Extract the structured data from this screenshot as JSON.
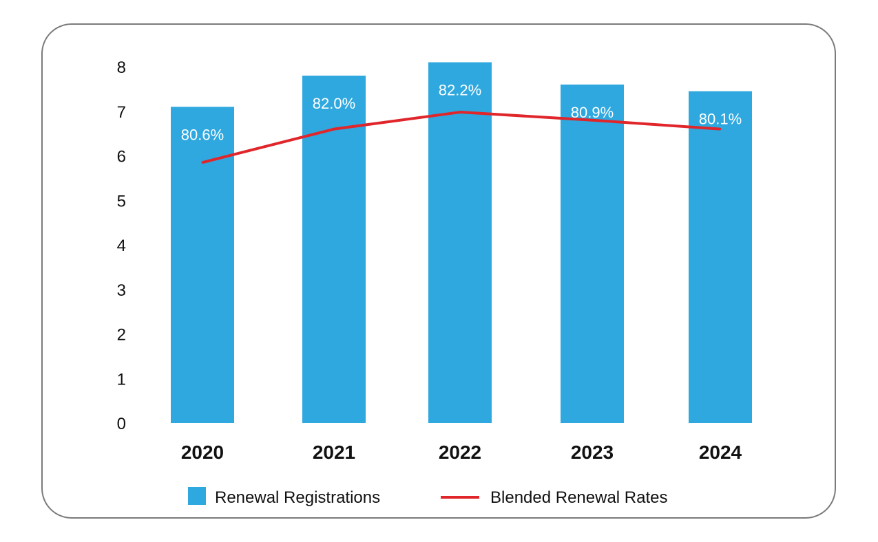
{
  "chart_data": {
    "type": "bar",
    "categories": [
      "2020",
      "2021",
      "2022",
      "2023",
      "2024"
    ],
    "ylim": [
      0,
      8
    ],
    "yticks": [
      0,
      1,
      2,
      3,
      4,
      5,
      6,
      7,
      8
    ],
    "grid": false,
    "legend_position": "bottom",
    "series": [
      {
        "name": "Renewal Registrations",
        "type": "bar",
        "values": [
          7.1,
          7.8,
          8.1,
          7.6,
          7.45
        ],
        "color": "#2ea8df"
      },
      {
        "name": "Blended Renewal Rates",
        "type": "line",
        "values": [
          80.6,
          82.0,
          82.2,
          80.9,
          80.1
        ],
        "display_values": [
          5.85,
          6.6,
          6.98,
          6.8,
          6.6
        ],
        "labels": [
          "80.6%",
          "82.0%",
          "82.2%",
          "80.9%",
          "80.1%"
        ],
        "color": "#e0262b"
      }
    ]
  }
}
